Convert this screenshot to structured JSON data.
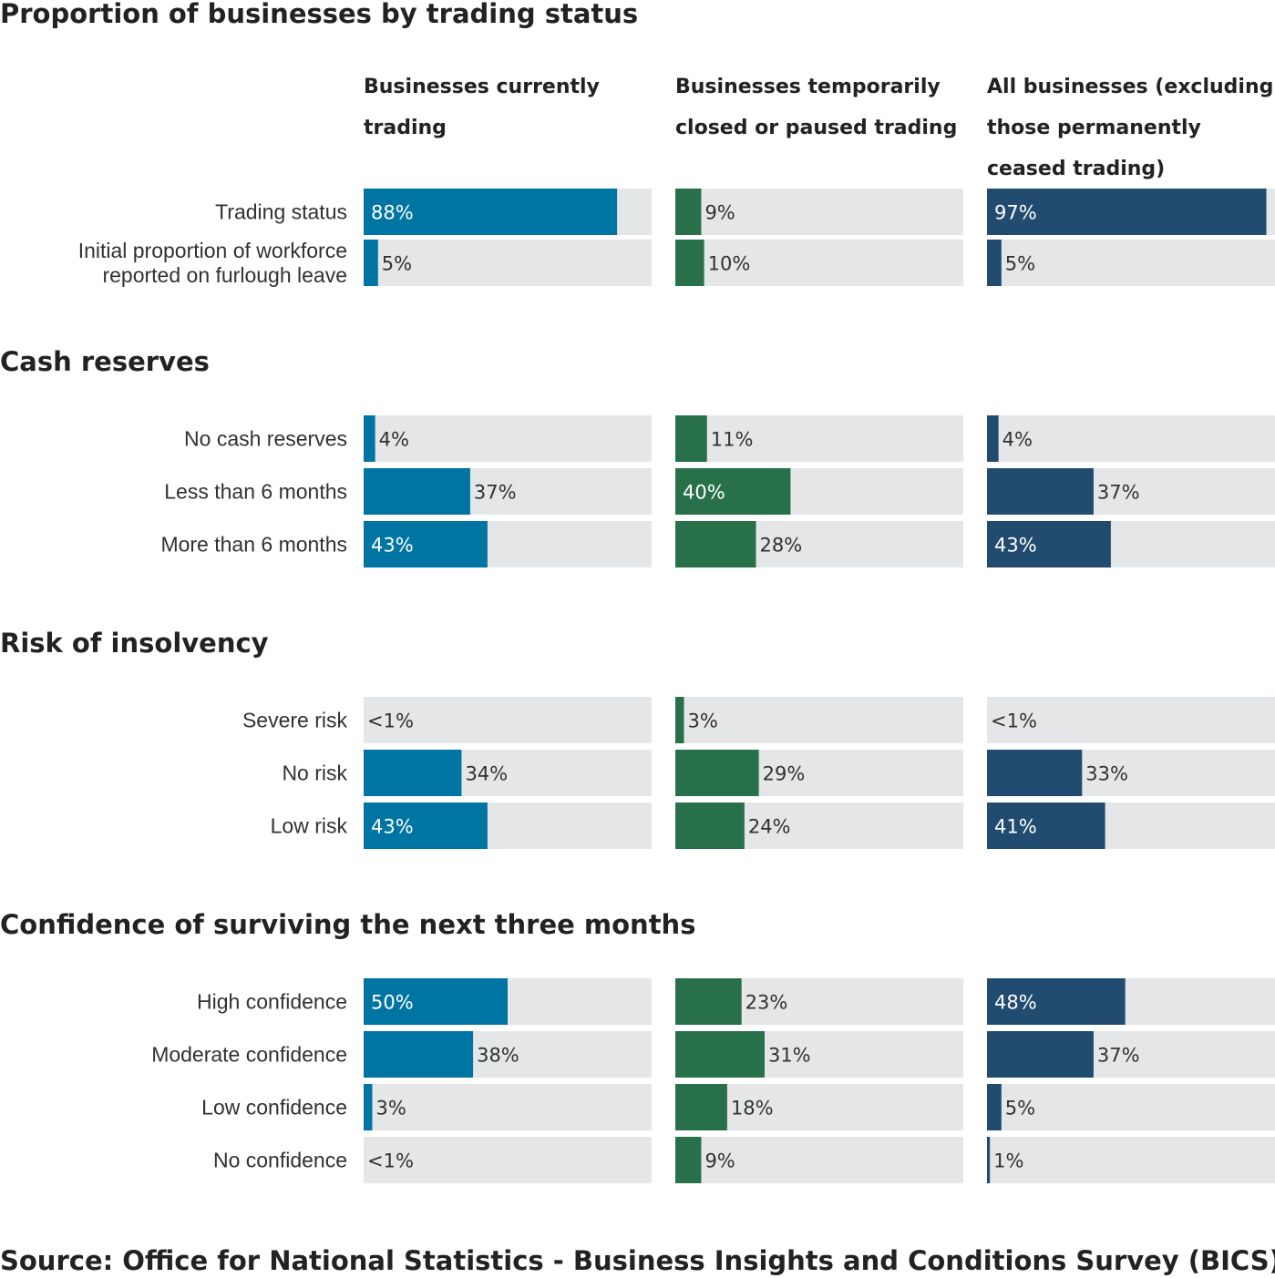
{
  "chart_data": {
    "type": "bar",
    "orientation": "horizontal",
    "xlim": [
      0,
      100
    ],
    "unit": "%",
    "columns": [
      {
        "label": "Businesses currently trading",
        "color": "#0075a3"
      },
      {
        "label": "Businesses temporarily closed or paused trading",
        "color": "#27704a"
      },
      {
        "label": "All businesses (excluding those permanently ceased trading)",
        "color": "#214b6f"
      }
    ],
    "background_color": "#e5e6e7",
    "sections": [
      {
        "title": "Proportion of businesses by trading status",
        "rows": [
          {
            "label": "Trading status",
            "values": [
              88,
              9,
              97
            ],
            "display": [
              "88%",
              "9%",
              "97%"
            ]
          },
          {
            "label": "Initial proportion of workforce reported on furlough leave",
            "values": [
              5,
              10,
              5
            ],
            "display": [
              "5%",
              "10%",
              "5%"
            ]
          }
        ]
      },
      {
        "title": "Cash reserves",
        "rows": [
          {
            "label": "No cash reserves",
            "values": [
              4,
              11,
              4
            ],
            "display": [
              "4%",
              "11%",
              "4%"
            ]
          },
          {
            "label": "Less than 6 months",
            "values": [
              37,
              40,
              37
            ],
            "display": [
              "37%",
              "40%",
              "37%"
            ]
          },
          {
            "label": "More than 6 months",
            "values": [
              43,
              28,
              43
            ],
            "display": [
              "43%",
              "28%",
              "43%"
            ]
          }
        ]
      },
      {
        "title": "Risk of insolvency",
        "rows": [
          {
            "label": "Severe risk",
            "values": [
              0,
              3,
              0
            ],
            "display": [
              "<1%",
              "3%",
              "<1%"
            ]
          },
          {
            "label": "No risk",
            "values": [
              34,
              29,
              33
            ],
            "display": [
              "34%",
              "29%",
              "33%"
            ]
          },
          {
            "label": "Low risk",
            "values": [
              43,
              24,
              41
            ],
            "display": [
              "43%",
              "24%",
              "41%"
            ]
          }
        ]
      },
      {
        "title": "Confidence of surviving the next three months",
        "rows": [
          {
            "label": "High confidence",
            "values": [
              50,
              23,
              48
            ],
            "display": [
              "50%",
              "23%",
              "48%"
            ]
          },
          {
            "label": "Moderate confidence",
            "values": [
              38,
              31,
              37
            ],
            "display": [
              "38%",
              "31%",
              "37%"
            ]
          },
          {
            "label": "Low confidence",
            "values": [
              3,
              18,
              5
            ],
            "display": [
              "3%",
              "18%",
              "5%"
            ]
          },
          {
            "label": "No confidence",
            "values": [
              0,
              9,
              1
            ],
            "display": [
              "<1%",
              "9%",
              "1%"
            ]
          }
        ]
      }
    ],
    "source": "Source: Office for National Statistics - Business Insights and Conditions Survey (BICS)"
  }
}
